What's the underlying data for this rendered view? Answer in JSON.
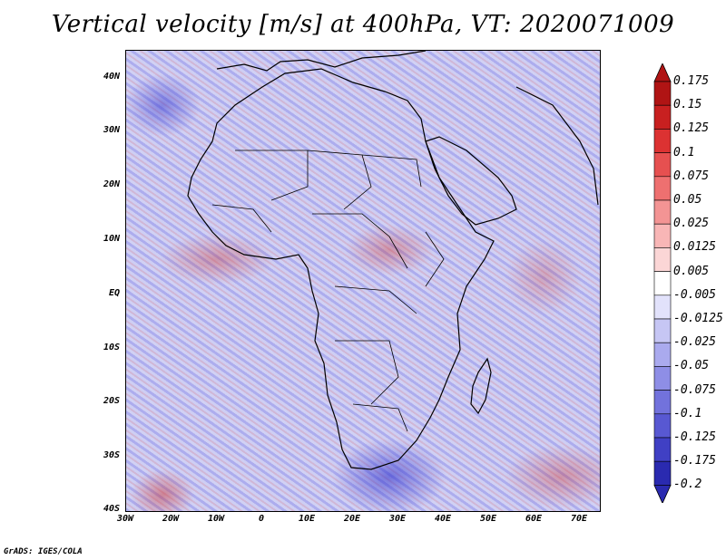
{
  "title": "Vertical velocity [m/s] at 400hPa, VT: 2020071009",
  "credit": "GrADS: IGES/COLA",
  "lat_labels": [
    "40N",
    "30N",
    "20N",
    "10N",
    "EQ",
    "10S",
    "20S",
    "30S",
    "40S"
  ],
  "lon_labels": [
    "30W",
    "20W",
    "10W",
    "0",
    "10E",
    "20E",
    "30E",
    "40E",
    "50E",
    "60E",
    "70E"
  ],
  "colorbar": {
    "labels": [
      "0.175",
      "0.15",
      "0.125",
      "0.1",
      "0.075",
      "0.05",
      "0.025",
      "0.0125",
      "0.005",
      "-0.005",
      "-0.0125",
      "-0.025",
      "-0.05",
      "-0.075",
      "-0.1",
      "-0.125",
      "-0.175",
      "-0.2"
    ],
    "colors": [
      "#b01414",
      "#c82020",
      "#dc3232",
      "#e65050",
      "#ee7070",
      "#f39494",
      "#f8b6b6",
      "#fbd6d6",
      "#ffffff",
      "#e2e2fb",
      "#c6c6f4",
      "#aaaaee",
      "#8e8ee6",
      "#7272dc",
      "#5858d2",
      "#4040c4",
      "#2a2ab0"
    ],
    "top_color": "#b01414",
    "bottom_color": "#2a2ab0"
  }
}
